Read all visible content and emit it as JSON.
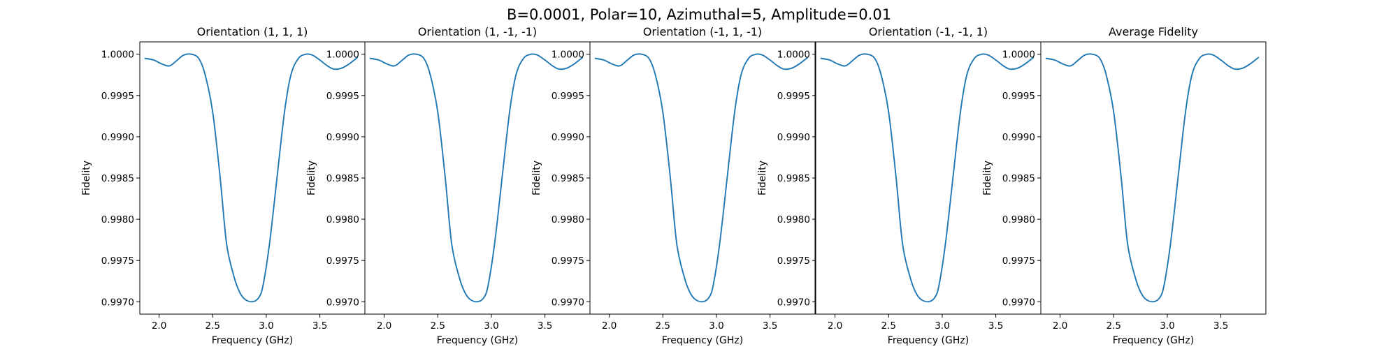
{
  "figure": {
    "suptitle": "B=0.0001, Polar=10, Azimuthal=5, Amplitude=0.01"
  },
  "chart_data": [
    {
      "type": "line",
      "title": "Orientation (1, 1, 1)",
      "xlabel": "Frequency (GHz)",
      "ylabel": "Fidelity",
      "xlim": [
        1.82,
        3.92
      ],
      "ylim": [
        0.99685,
        1.00015
      ],
      "xticks": [
        "2.0",
        "2.5",
        "3.0",
        "3.5"
      ],
      "yticks": [
        "0.9970",
        "0.9975",
        "0.9980",
        "0.9985",
        "0.9990",
        "0.9995",
        "1.0000"
      ],
      "grid": false,
      "series": [
        {
          "color": "#1f77b4",
          "x": [
            1.87,
            1.95,
            2.03,
            2.1,
            2.17,
            2.23,
            2.3,
            2.37,
            2.43,
            2.5,
            2.57,
            2.63,
            2.7,
            2.75,
            2.8,
            2.87,
            2.93,
            2.97,
            3.03,
            3.1,
            3.17,
            3.23,
            3.3,
            3.37,
            3.43,
            3.5,
            3.57,
            3.63,
            3.7,
            3.77,
            3.85
          ],
          "y": [
            0.99995,
            0.99993,
            0.99988,
            0.99986,
            0.99993,
            0.99999,
            1.0,
            0.99995,
            0.99975,
            0.9993,
            0.9985,
            0.9977,
            0.9973,
            0.99712,
            0.99703,
            0.997,
            0.99705,
            0.9972,
            0.9977,
            0.9985,
            0.9993,
            0.99975,
            0.99995,
            1.0,
            0.99999,
            0.99993,
            0.99986,
            0.99982,
            0.99983,
            0.99988,
            0.99996
          ]
        }
      ]
    },
    {
      "type": "line",
      "title": "Orientation (1, -1, -1)",
      "xlabel": "Frequency (GHz)",
      "ylabel": "Fidelity",
      "xlim": [
        1.82,
        3.92
      ],
      "ylim": [
        0.99685,
        1.00015
      ],
      "xticks": [
        "2.0",
        "2.5",
        "3.0",
        "3.5"
      ],
      "yticks": [
        "0.9970",
        "0.9975",
        "0.9980",
        "0.9985",
        "0.9990",
        "0.9995",
        "1.0000"
      ],
      "grid": false,
      "series": [
        {
          "color": "#1f77b4",
          "x": [
            1.87,
            1.95,
            2.03,
            2.1,
            2.17,
            2.23,
            2.3,
            2.37,
            2.43,
            2.5,
            2.57,
            2.63,
            2.7,
            2.75,
            2.8,
            2.87,
            2.93,
            2.97,
            3.03,
            3.1,
            3.17,
            3.23,
            3.3,
            3.37,
            3.43,
            3.5,
            3.57,
            3.63,
            3.7,
            3.77,
            3.85
          ],
          "y": [
            0.99995,
            0.99993,
            0.99988,
            0.99986,
            0.99993,
            0.99999,
            1.0,
            0.99995,
            0.99975,
            0.9993,
            0.9985,
            0.9977,
            0.9973,
            0.99712,
            0.99703,
            0.997,
            0.99705,
            0.9972,
            0.9977,
            0.9985,
            0.9993,
            0.99975,
            0.99995,
            1.0,
            0.99999,
            0.99993,
            0.99986,
            0.99982,
            0.99983,
            0.99988,
            0.99996
          ]
        }
      ]
    },
    {
      "type": "line",
      "title": "Orientation (-1, 1, -1)",
      "xlabel": "Frequency (GHz)",
      "ylabel": "Fidelity",
      "xlim": [
        1.82,
        3.92
      ],
      "ylim": [
        0.99685,
        1.00015
      ],
      "xticks": [
        "2.0",
        "2.5",
        "3.0",
        "3.5"
      ],
      "yticks": [
        "0.9970",
        "0.9975",
        "0.9980",
        "0.9985",
        "0.9990",
        "0.9995",
        "1.0000"
      ],
      "grid": false,
      "series": [
        {
          "color": "#1f77b4",
          "x": [
            1.87,
            1.95,
            2.03,
            2.1,
            2.17,
            2.23,
            2.3,
            2.37,
            2.43,
            2.5,
            2.57,
            2.63,
            2.7,
            2.75,
            2.8,
            2.87,
            2.93,
            2.97,
            3.03,
            3.1,
            3.17,
            3.23,
            3.3,
            3.37,
            3.43,
            3.5,
            3.57,
            3.63,
            3.7,
            3.77,
            3.85
          ],
          "y": [
            0.99995,
            0.99993,
            0.99988,
            0.99986,
            0.99993,
            0.99999,
            1.0,
            0.99995,
            0.99975,
            0.9993,
            0.9985,
            0.9977,
            0.9973,
            0.99712,
            0.99703,
            0.997,
            0.99705,
            0.9972,
            0.9977,
            0.9985,
            0.9993,
            0.99975,
            0.99995,
            1.0,
            0.99999,
            0.99993,
            0.99986,
            0.99982,
            0.99983,
            0.99988,
            0.99996
          ]
        }
      ]
    },
    {
      "type": "line",
      "title": "Orientation (-1, -1, 1)",
      "xlabel": "Frequency (GHz)",
      "ylabel": "Fidelity",
      "xlim": [
        1.82,
        3.92
      ],
      "ylim": [
        0.99685,
        1.00015
      ],
      "xticks": [
        "2.0",
        "2.5",
        "3.0",
        "3.5"
      ],
      "yticks": [
        "0.9970",
        "0.9975",
        "0.9980",
        "0.9985",
        "0.9990",
        "0.9995",
        "1.0000"
      ],
      "grid": false,
      "series": [
        {
          "color": "#1f77b4",
          "x": [
            1.87,
            1.95,
            2.03,
            2.1,
            2.17,
            2.23,
            2.3,
            2.37,
            2.43,
            2.5,
            2.57,
            2.63,
            2.7,
            2.75,
            2.8,
            2.87,
            2.93,
            2.97,
            3.03,
            3.1,
            3.17,
            3.23,
            3.3,
            3.37,
            3.43,
            3.5,
            3.57,
            3.63,
            3.7,
            3.77,
            3.85
          ],
          "y": [
            0.99995,
            0.99993,
            0.99988,
            0.99986,
            0.99993,
            0.99999,
            1.0,
            0.99995,
            0.99975,
            0.9993,
            0.9985,
            0.9977,
            0.9973,
            0.99712,
            0.99703,
            0.997,
            0.99705,
            0.9972,
            0.9977,
            0.9985,
            0.9993,
            0.99975,
            0.99995,
            1.0,
            0.99999,
            0.99993,
            0.99986,
            0.99982,
            0.99983,
            0.99988,
            0.99996
          ]
        }
      ]
    },
    {
      "type": "line",
      "title": "Average Fidelity",
      "xlabel": "Frequency (GHz)",
      "ylabel": "Fidelity",
      "xlim": [
        1.82,
        3.92
      ],
      "ylim": [
        0.99685,
        1.00015
      ],
      "xticks": [
        "2.0",
        "2.5",
        "3.0",
        "3.5"
      ],
      "yticks": [
        "0.9970",
        "0.9975",
        "0.9980",
        "0.9985",
        "0.9990",
        "0.9995",
        "1.0000"
      ],
      "grid": false,
      "series": [
        {
          "color": "#1f77b4",
          "x": [
            1.87,
            1.95,
            2.03,
            2.1,
            2.17,
            2.23,
            2.3,
            2.37,
            2.43,
            2.5,
            2.57,
            2.63,
            2.7,
            2.75,
            2.8,
            2.87,
            2.93,
            2.97,
            3.03,
            3.1,
            3.17,
            3.23,
            3.3,
            3.37,
            3.43,
            3.5,
            3.57,
            3.63,
            3.7,
            3.77,
            3.85
          ],
          "y": [
            0.99995,
            0.99993,
            0.99988,
            0.99986,
            0.99993,
            0.99999,
            1.0,
            0.99995,
            0.99975,
            0.9993,
            0.9985,
            0.9977,
            0.9973,
            0.99712,
            0.99703,
            0.997,
            0.99705,
            0.9972,
            0.9977,
            0.9985,
            0.9993,
            0.99975,
            0.99995,
            1.0,
            0.99999,
            0.99993,
            0.99986,
            0.99982,
            0.99983,
            0.99988,
            0.99996
          ]
        }
      ]
    }
  ]
}
